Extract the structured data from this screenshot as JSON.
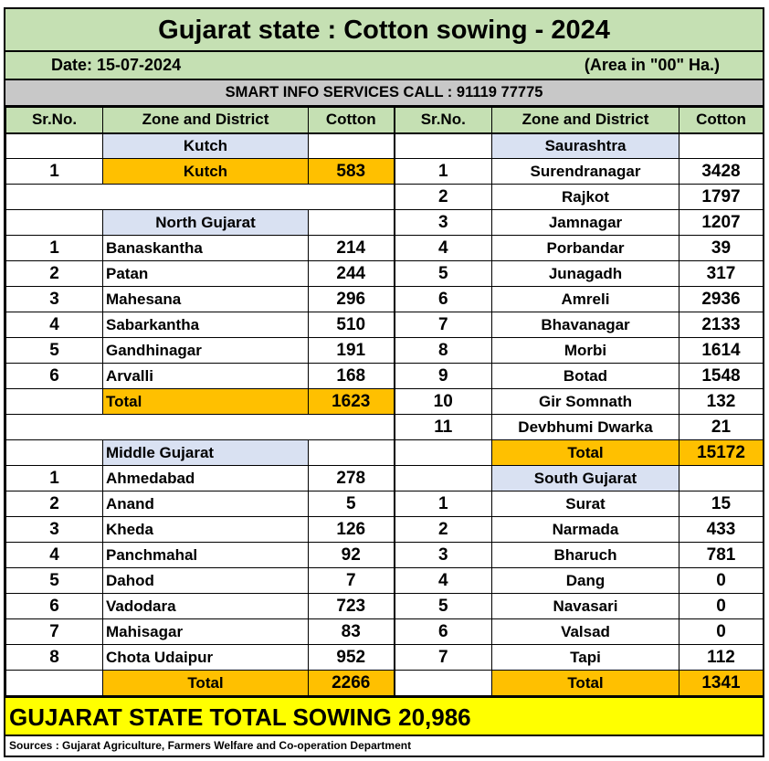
{
  "title": "Gujarat state : Cotton sowing - 2024",
  "date_label": "Date: 15-07-2024",
  "area_note": "(Area in \"00\" Ha.)",
  "info_line": "SMART INFO SERVICES CALL : 91119 77775",
  "headers": {
    "sr_no": "Sr.No.",
    "zone_district": "Zone and District",
    "cotton": "Cotton"
  },
  "kutch": {
    "zone": "Kutch",
    "rows": [
      {
        "sr": "1",
        "name": "Kutch",
        "value": "583"
      }
    ]
  },
  "north_gujarat": {
    "zone": "North Gujarat",
    "rows": [
      {
        "sr": "1",
        "name": "Banaskantha",
        "value": "214"
      },
      {
        "sr": "2",
        "name": "Patan",
        "value": "244"
      },
      {
        "sr": "3",
        "name": "Mahesana",
        "value": "296"
      },
      {
        "sr": "4",
        "name": "Sabarkantha",
        "value": "510"
      },
      {
        "sr": "5",
        "name": "Gandhinagar",
        "value": "191"
      },
      {
        "sr": "6",
        "name": "Arvalli",
        "value": "168"
      }
    ],
    "total_label": "Total",
    "total": "1623"
  },
  "middle_gujarat": {
    "zone": "Middle Gujarat",
    "rows": [
      {
        "sr": "1",
        "name": "Ahmedabad",
        "value": "278"
      },
      {
        "sr": "2",
        "name": "Anand",
        "value": "5"
      },
      {
        "sr": "3",
        "name": "Kheda",
        "value": "126"
      },
      {
        "sr": "4",
        "name": "Panchmahal",
        "value": "92"
      },
      {
        "sr": "5",
        "name": "Dahod",
        "value": "7"
      },
      {
        "sr": "6",
        "name": "Vadodara",
        "value": "723"
      },
      {
        "sr": "7",
        "name": "Mahisagar",
        "value": "83"
      },
      {
        "sr": "8",
        "name": "Chota Udaipur",
        "value": "952"
      }
    ],
    "total_label": "Total",
    "total": "2266"
  },
  "saurashtra": {
    "zone": "Saurashtra",
    "rows": [
      {
        "sr": "1",
        "name": "Surendranagar",
        "value": "3428"
      },
      {
        "sr": "2",
        "name": "Rajkot",
        "value": "1797"
      },
      {
        "sr": "3",
        "name": "Jamnagar",
        "value": "1207"
      },
      {
        "sr": "4",
        "name": "Porbandar",
        "value": "39"
      },
      {
        "sr": "5",
        "name": "Junagadh",
        "value": "317"
      },
      {
        "sr": "6",
        "name": "Amreli",
        "value": "2936"
      },
      {
        "sr": "7",
        "name": "Bhavanagar",
        "value": "2133"
      },
      {
        "sr": "8",
        "name": "Morbi",
        "value": "1614"
      },
      {
        "sr": "9",
        "name": "Botad",
        "value": "1548"
      },
      {
        "sr": "10",
        "name": "Gir Somnath",
        "value": "132"
      },
      {
        "sr": "11",
        "name": "Devbhumi Dwarka",
        "value": "21"
      }
    ],
    "total_label": "Total",
    "total": "15172"
  },
  "south_gujarat": {
    "zone": "South Gujarat",
    "rows": [
      {
        "sr": "1",
        "name": "Surat",
        "value": "15"
      },
      {
        "sr": "2",
        "name": "Narmada",
        "value": "433"
      },
      {
        "sr": "3",
        "name": "Bharuch",
        "value": "781"
      },
      {
        "sr": "4",
        "name": "Dang",
        "value": "0"
      },
      {
        "sr": "5",
        "name": "Navasari",
        "value": "0"
      },
      {
        "sr": "6",
        "name": "Valsad",
        "value": "0"
      },
      {
        "sr": "7",
        "name": "Tapi",
        "value": "112"
      }
    ],
    "total_label": "Total",
    "total": "1341"
  },
  "state_total": "GUJARAT STATE TOTAL SOWING 20,986",
  "sources": "Sources : Gujarat Agriculture, Farmers Welfare and Co-operation Department",
  "colors": {
    "header_green": "#c5e0b3",
    "zone_blue": "#d9e1f2",
    "total_orange": "#ffc000",
    "banner_yellow": "#ffff00",
    "info_gray": "#c8c8c8"
  }
}
